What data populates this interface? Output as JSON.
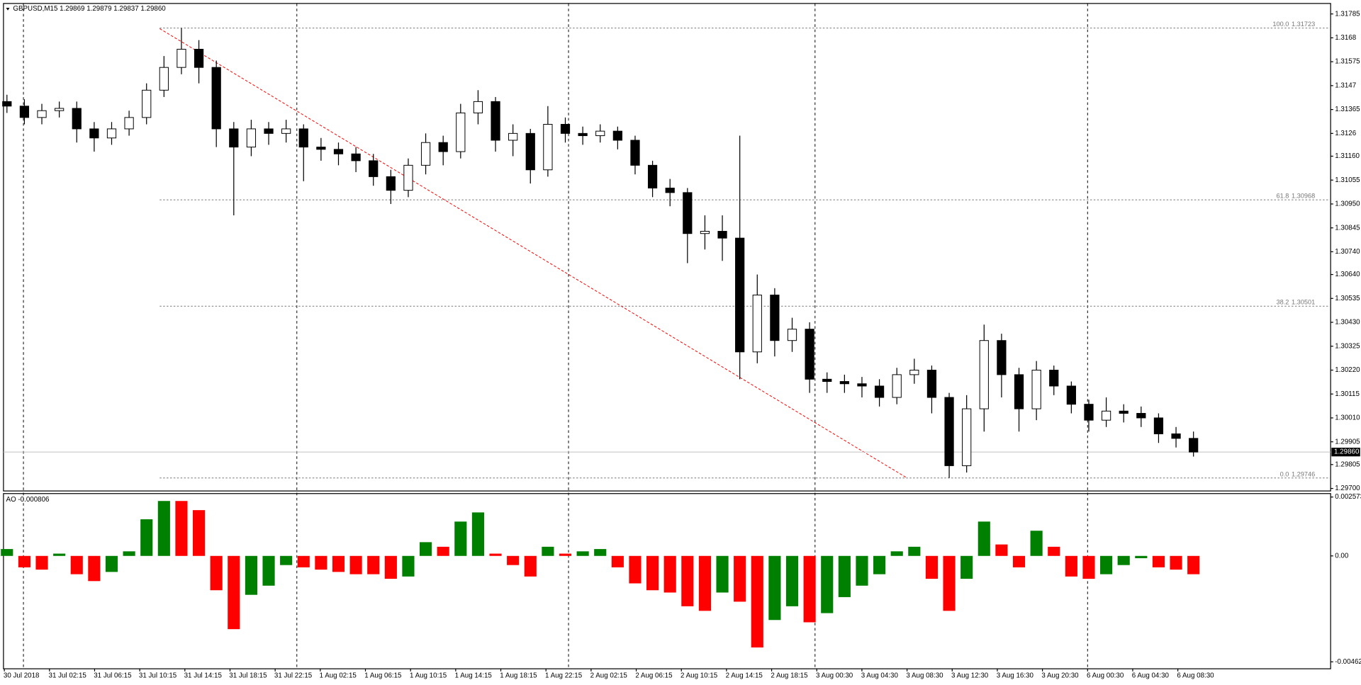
{
  "chart_data": {
    "type": "candlestick",
    "title": "GBPUSD,M15  1.29869 1.29879 1.29837 1.29860",
    "open": [
      1.314,
      1.3138,
      1.3133,
      1.3136,
      1.3137,
      1.3128,
      1.3124,
      1.3128,
      1.3133,
      1.3145,
      1.3155,
      1.3163,
      1.3155,
      1.3128,
      1.312,
      1.3128,
      1.3126,
      1.3128,
      1.312,
      1.3119,
      1.3117,
      1.3114,
      1.3107,
      1.3101,
      1.3112,
      1.3122,
      1.3118,
      1.3135,
      1.314,
      1.3123,
      1.3126,
      1.311,
      1.313,
      1.3126,
      1.3125,
      1.3127,
      1.3123,
      1.3112,
      1.3102,
      1.31,
      1.3082,
      1.3083,
      1.308,
      1.303,
      1.3055,
      1.3035,
      1.304,
      1.3018,
      1.3017,
      1.3016,
      1.3015,
      1.301,
      1.302,
      1.3022,
      1.301,
      1.298,
      1.3005,
      1.3035,
      1.302,
      1.3005,
      1.3022,
      1.3015,
      1.3007,
      1.3,
      1.3004,
      1.3003,
      1.3001,
      1.2994,
      1.2992
    ],
    "high": [
      1.3143,
      1.3141,
      1.3139,
      1.314,
      1.314,
      1.3131,
      1.3131,
      1.3136,
      1.3148,
      1.316,
      1.31723,
      1.3167,
      1.3158,
      1.3131,
      1.3132,
      1.3131,
      1.3132,
      1.313,
      1.3124,
      1.3122,
      1.312,
      1.3117,
      1.311,
      1.3115,
      1.3126,
      1.3125,
      1.3139,
      1.3145,
      1.3142,
      1.313,
      1.3128,
      1.3138,
      1.3133,
      1.3129,
      1.313,
      1.3129,
      1.3125,
      1.3114,
      1.3106,
      1.3102,
      1.309,
      1.309,
      1.3125,
      1.3064,
      1.3058,
      1.3045,
      1.3043,
      1.3021,
      1.302,
      1.3019,
      1.3018,
      1.3023,
      1.3027,
      1.3024,
      1.3012,
      1.3011,
      1.3042,
      1.3038,
      1.3023,
      1.3026,
      1.3024,
      1.3017,
      1.3009,
      1.301,
      1.3007,
      1.3006,
      1.3003,
      1.2997,
      1.2995
    ],
    "low": [
      1.3135,
      1.313,
      1.313,
      1.3133,
      1.3122,
      1.3118,
      1.3121,
      1.3125,
      1.313,
      1.3142,
      1.3152,
      1.3148,
      1.312,
      1.309,
      1.3116,
      1.3121,
      1.3122,
      1.3105,
      1.3114,
      1.3112,
      1.3109,
      1.3103,
      1.3095,
      1.3098,
      1.3108,
      1.3112,
      1.3115,
      1.313,
      1.3118,
      1.3116,
      1.3104,
      1.3107,
      1.3122,
      1.3121,
      1.3122,
      1.3119,
      1.3108,
      1.3098,
      1.3094,
      1.3069,
      1.3075,
      1.307,
      1.3018,
      1.3025,
      1.3028,
      1.303,
      1.3012,
      1.3012,
      1.3012,
      1.301,
      1.3006,
      1.3007,
      1.3016,
      1.3003,
      1.29746,
      1.2977,
      1.2995,
      1.301,
      1.2995,
      1.3,
      1.3011,
      1.3003,
      1.2995,
      1.2997,
      1.2999,
      1.2997,
      1.299,
      1.2988,
      1.2984
    ],
    "close": [
      1.3138,
      1.3133,
      1.3136,
      1.3137,
      1.3128,
      1.3124,
      1.3128,
      1.3133,
      1.3145,
      1.3155,
      1.3163,
      1.3155,
      1.3128,
      1.312,
      1.3128,
      1.3126,
      1.3128,
      1.312,
      1.3119,
      1.3117,
      1.3114,
      1.3107,
      1.3101,
      1.3112,
      1.3122,
      1.3118,
      1.3135,
      1.314,
      1.3123,
      1.3126,
      1.311,
      1.313,
      1.3126,
      1.3125,
      1.3127,
      1.3123,
      1.3112,
      1.3102,
      1.31,
      1.3082,
      1.3083,
      1.308,
      1.303,
      1.3055,
      1.3035,
      1.304,
      1.3018,
      1.3017,
      1.3016,
      1.3015,
      1.301,
      1.302,
      1.3022,
      1.301,
      1.298,
      1.3005,
      1.3035,
      1.302,
      1.3005,
      1.3022,
      1.3015,
      1.3007,
      1.3,
      1.3004,
      1.3003,
      1.3001,
      1.2994,
      1.2992,
      1.2986
    ],
    "up_color": "#ffffff",
    "down_color": "#000000",
    "ylim": [
      1.29689,
      1.31831
    ],
    "yticks": [
      1.31785,
      1.3168,
      1.31575,
      1.3147,
      1.31365,
      1.3126,
      {
        "value": 1.3116,
        "label": "1.31160"
      },
      1.31055,
      {
        "value": 1.3095,
        "label": "1.30950"
      },
      1.30845,
      {
        "value": 1.3074,
        "label": "1.30740"
      },
      {
        "value": 1.3064,
        "label": "1.30640"
      },
      1.30535,
      {
        "value": 1.3043,
        "label": "1.30430"
      },
      1.30325,
      {
        "value": 1.3022,
        "label": "1.30220"
      },
      1.30115,
      {
        "value": 1.3001,
        "label": "1.30010"
      },
      1.29905,
      1.29805,
      {
        "value": 1.297,
        "label": "1.29700"
      }
    ],
    "current_price": {
      "value": 1.2986,
      "label": "1.29860"
    },
    "fib_levels": [
      {
        "ratio": "100.0",
        "value": 1.31723
      },
      {
        "ratio": "61.8",
        "value": 1.30968
      },
      {
        "ratio": "38.2",
        "value": 1.30501
      },
      {
        "ratio": "0.0",
        "value": 1.29746
      }
    ],
    "time_labels": [
      "30 Jul 2018",
      "31 Jul 02:15",
      "31 Jul 06:15",
      "31 Jul 10:15",
      "31 Jul 14:15",
      "31 Jul 18:15",
      "31 Jul 22:15",
      "1 Aug 02:15",
      "1 Aug 06:15",
      "1 Aug 10:15",
      "1 Aug 14:15",
      "1 Aug 18:15",
      "1 Aug 22:15",
      "2 Aug 02:15",
      "2 Aug 06:15",
      "2 Aug 10:15",
      "2 Aug 14:15",
      "2 Aug 18:15",
      "3 Aug 00:30",
      "3 Aug 04:30",
      "3 Aug 08:30",
      "3 Aug 12:30",
      "3 Aug 16:30",
      "3 Aug 20:30",
      "6 Aug 00:30",
      "6 Aug 04:30",
      "6 Aug 08:30"
    ],
    "indicator": {
      "type": "bar",
      "title": "AO -0.000806",
      "values": [
        0.0003,
        -0.0005,
        -0.0006,
        0.0001,
        -0.0008,
        -0.0011,
        -0.0007,
        0.0002,
        0.0016,
        0.0024,
        0.0024,
        0.002,
        -0.0015,
        -0.0032,
        -0.0017,
        -0.0013,
        -0.0004,
        -0.0005,
        -0.0006,
        -0.0007,
        -0.0008,
        -0.0008,
        -0.001,
        -0.0009,
        0.0006,
        0.0004,
        0.0015,
        0.0019,
        0.0001,
        -0.0004,
        -0.0009,
        0.0004,
        0.0001,
        0.0002,
        0.0003,
        -0.0005,
        -0.0012,
        -0.0015,
        -0.0016,
        -0.0022,
        -0.0024,
        -0.0016,
        -0.002,
        -0.004,
        -0.0028,
        -0.0022,
        -0.0029,
        -0.0025,
        -0.0018,
        -0.0013,
        -0.0008,
        0.0002,
        0.0004,
        -0.001,
        -0.0024,
        -0.001,
        0.0015,
        0.0005,
        -0.0005,
        0.0011,
        0.0004,
        -0.0009,
        -0.001,
        -0.0008,
        -0.0004,
        -0.0001,
        -0.0005,
        -0.0006,
        -0.0008
      ],
      "up_color": "#008000",
      "down_color": "#ff0000",
      "ylim": [
        -0.004931,
        0.002724
      ],
      "yticks": [
        0.002573,
        {
          "value": 0,
          "label": "0.00"
        },
        -0.004628
      ]
    }
  }
}
